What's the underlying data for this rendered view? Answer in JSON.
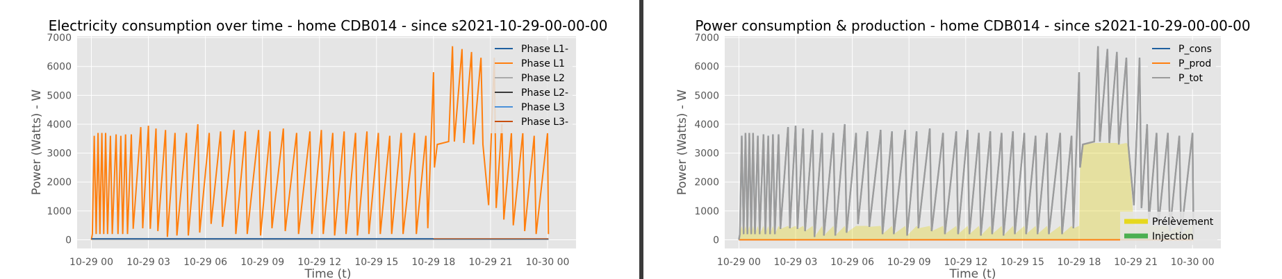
{
  "divider_color": "#3a3a3a",
  "colors": {
    "plot_bg": "#e5e5e5",
    "grid": "#ffffff",
    "tick_text": "#555555",
    "label_text": "#555555",
    "title_text": "#000000"
  },
  "chart_data": [
    {
      "type": "line",
      "title": "Electricity consumption over time - home CDB014 - since s2021-10-29-00-00-00",
      "xlabel": "Time (t)",
      "ylabel": "Power (Watts) - W",
      "x_ticks": [
        "10-29 00",
        "10-29 03",
        "10-29 06",
        "10-29 09",
        "10-29 12",
        "10-29 15",
        "10-29 18",
        "10-29 21",
        "10-30 00"
      ],
      "xlim_hours": [
        -0.75,
        25.5
      ],
      "ylim": [
        -300,
        7050
      ],
      "y_ticks": [
        0,
        1000,
        2000,
        3000,
        4000,
        5000,
        6000,
        7000
      ],
      "grid": true,
      "legend_position": "top-right",
      "series": [
        {
          "name": "Phase L1-",
          "color": "#1f5f9f"
        },
        {
          "name": "Phase L1",
          "color": "#ff7f0e"
        },
        {
          "name": "Phase L2",
          "color": "#aaaaaa"
        },
        {
          "name": "Phase L2-",
          "color": "#3a3a3a"
        },
        {
          "name": "Phase L3",
          "color": "#4a90d9"
        },
        {
          "name": "Phase L3-",
          "color": "#c84e0e"
        }
      ],
      "main_series_points_hours_watts": [
        [
          0.0,
          0
        ],
        [
          0.05,
          200
        ],
        [
          0.15,
          3600
        ],
        [
          0.25,
          200
        ],
        [
          0.35,
          3700
        ],
        [
          0.45,
          200
        ],
        [
          0.55,
          3700
        ],
        [
          0.65,
          200
        ],
        [
          0.75,
          3700
        ],
        [
          0.85,
          200
        ],
        [
          1.0,
          3600
        ],
        [
          1.1,
          200
        ],
        [
          1.3,
          3650
        ],
        [
          1.4,
          200
        ],
        [
          1.55,
          3600
        ],
        [
          1.65,
          200
        ],
        [
          1.8,
          3650
        ],
        [
          1.9,
          200
        ],
        [
          2.1,
          3650
        ],
        [
          2.2,
          380
        ],
        [
          2.6,
          3900
        ],
        [
          2.7,
          400
        ],
        [
          3.0,
          3950
        ],
        [
          3.1,
          380
        ],
        [
          3.4,
          3850
        ],
        [
          3.5,
          300
        ],
        [
          3.9,
          3800
        ],
        [
          4.0,
          100
        ],
        [
          4.4,
          3700
        ],
        [
          4.5,
          150
        ],
        [
          5.0,
          3700
        ],
        [
          5.1,
          150
        ],
        [
          5.6,
          4000
        ],
        [
          5.7,
          250
        ],
        [
          6.2,
          3700
        ],
        [
          6.3,
          550
        ],
        [
          6.8,
          3750
        ],
        [
          6.9,
          450
        ],
        [
          7.5,
          3800
        ],
        [
          7.6,
          200
        ],
        [
          8.1,
          3750
        ],
        [
          8.2,
          200
        ],
        [
          8.8,
          3800
        ],
        [
          8.9,
          150
        ],
        [
          9.4,
          3750
        ],
        [
          9.5,
          400
        ],
        [
          10.1,
          3850
        ],
        [
          10.2,
          300
        ],
        [
          10.8,
          3700
        ],
        [
          10.9,
          200
        ],
        [
          11.5,
          3750
        ],
        [
          11.6,
          200
        ],
        [
          12.1,
          3800
        ],
        [
          12.2,
          200
        ],
        [
          12.7,
          3700
        ],
        [
          12.8,
          150
        ],
        [
          13.3,
          3750
        ],
        [
          13.4,
          200
        ],
        [
          13.9,
          3700
        ],
        [
          14.0,
          150
        ],
        [
          14.5,
          3750
        ],
        [
          14.6,
          200
        ],
        [
          15.1,
          3700
        ],
        [
          15.2,
          200
        ],
        [
          15.7,
          3600
        ],
        [
          15.8,
          200
        ],
        [
          16.3,
          3700
        ],
        [
          16.4,
          200
        ],
        [
          17.0,
          3700
        ],
        [
          17.1,
          200
        ],
        [
          17.6,
          3600
        ],
        [
          17.7,
          400
        ],
        [
          18.0,
          5800
        ],
        [
          18.05,
          2500
        ],
        [
          18.2,
          3300
        ],
        [
          18.8,
          3400
        ],
        [
          19.0,
          6700
        ],
        [
          19.1,
          3400
        ],
        [
          19.5,
          6600
        ],
        [
          19.6,
          3350
        ],
        [
          20.0,
          6500
        ],
        [
          20.1,
          3300
        ],
        [
          20.5,
          6300
        ],
        [
          20.6,
          3300
        ],
        [
          20.9,
          1200
        ],
        [
          21.2,
          6300
        ],
        [
          21.3,
          1100
        ],
        [
          21.6,
          4000
        ],
        [
          21.7,
          700
        ],
        [
          22.1,
          3700
        ],
        [
          22.2,
          500
        ],
        [
          22.7,
          3700
        ],
        [
          22.8,
          300
        ],
        [
          23.3,
          3600
        ],
        [
          23.4,
          200
        ],
        [
          24.0,
          3700
        ],
        [
          24.05,
          200
        ]
      ]
    },
    {
      "type": "area",
      "title": "Power consumption & production - home CDB014 - since s2021-10-29-00-00-00",
      "xlabel": "Time (t)",
      "ylabel": "Power (Watts) - W",
      "x_ticks": [
        "10-29 00",
        "10-29 03",
        "10-29 06",
        "10-29 09",
        "10-29 12",
        "10-29 15",
        "10-29 18",
        "10-29 21",
        "10-30 00"
      ],
      "xlim_hours": [
        -0.75,
        25.5
      ],
      "ylim": [
        -300,
        7050
      ],
      "y_ticks": [
        0,
        1000,
        2000,
        3000,
        4000,
        5000,
        6000,
        7000
      ],
      "grid": true,
      "legend_position": "top-right",
      "series": [
        {
          "name": "P_cons",
          "color": "#1f5f9f"
        },
        {
          "name": "P_prod",
          "color": "#ff7f0e"
        },
        {
          "name": "P_tot",
          "color": "#9b9b9b"
        }
      ],
      "fill_legend": [
        {
          "name": "Prélèvement",
          "color": "#e6d81f"
        },
        {
          "name": "Injection",
          "color": "#4caf50"
        }
      ]
    }
  ]
}
